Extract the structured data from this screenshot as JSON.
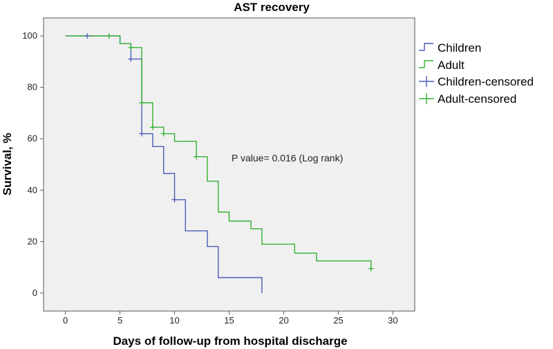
{
  "chart_data": {
    "type": "line",
    "title": "AST recovery",
    "xlabel": "Days of follow-up from hospital discharge",
    "ylabel": "Survival, %",
    "xlim": [
      -2,
      32
    ],
    "ylim": [
      -7,
      107
    ],
    "xticks": [
      0,
      5,
      10,
      15,
      20,
      25,
      30
    ],
    "yticks": [
      0,
      20,
      40,
      60,
      80,
      100
    ],
    "annotation": "P value= 0.016 (Log rank)",
    "legend_position": "right",
    "series": [
      {
        "name": "Children",
        "color": "#4a5cb5",
        "step_points": [
          [
            0,
            100
          ],
          [
            5,
            100
          ],
          [
            5,
            97
          ],
          [
            6,
            97
          ],
          [
            6,
            91
          ],
          [
            7,
            91
          ],
          [
            7,
            62
          ],
          [
            8,
            62
          ],
          [
            8,
            57
          ],
          [
            9,
            57
          ],
          [
            9,
            46.5
          ],
          [
            10,
            46.5
          ],
          [
            10,
            36.3
          ],
          [
            11,
            36.3
          ],
          [
            11,
            24.2
          ],
          [
            13,
            24.2
          ],
          [
            13,
            18.1
          ],
          [
            14,
            18.1
          ],
          [
            14,
            6
          ],
          [
            18,
            6
          ],
          [
            18,
            0
          ]
        ],
        "censored_name": "Children-censored",
        "censored": [
          [
            2,
            100
          ],
          [
            6,
            91
          ],
          [
            7,
            62
          ],
          [
            10,
            36.3
          ]
        ]
      },
      {
        "name": "Adult",
        "color": "#33b033",
        "step_points": [
          [
            0,
            100
          ],
          [
            5,
            100
          ],
          [
            5,
            97
          ],
          [
            6,
            97
          ],
          [
            6,
            95.5
          ],
          [
            7,
            95.5
          ],
          [
            7,
            74
          ],
          [
            8,
            74
          ],
          [
            8,
            64.5
          ],
          [
            9,
            64.5
          ],
          [
            9,
            62
          ],
          [
            10,
            62
          ],
          [
            10,
            59
          ],
          [
            12,
            59
          ],
          [
            12,
            53
          ],
          [
            13,
            53
          ],
          [
            13,
            43.5
          ],
          [
            14,
            43.5
          ],
          [
            14,
            31.5
          ],
          [
            15,
            31.5
          ],
          [
            15,
            28
          ],
          [
            17,
            28
          ],
          [
            17,
            25
          ],
          [
            18,
            25
          ],
          [
            18,
            19
          ],
          [
            21,
            19
          ],
          [
            21,
            15.5
          ],
          [
            23,
            15.5
          ],
          [
            23,
            12.5
          ],
          [
            28,
            12.5
          ],
          [
            28,
            9.5
          ]
        ],
        "censored_name": "Adult-censored",
        "censored": [
          [
            4,
            100
          ],
          [
            6,
            95.5
          ],
          [
            7,
            74
          ],
          [
            8,
            64.5
          ],
          [
            9,
            62
          ],
          [
            12,
            53
          ],
          [
            28,
            9.5
          ]
        ]
      }
    ]
  }
}
